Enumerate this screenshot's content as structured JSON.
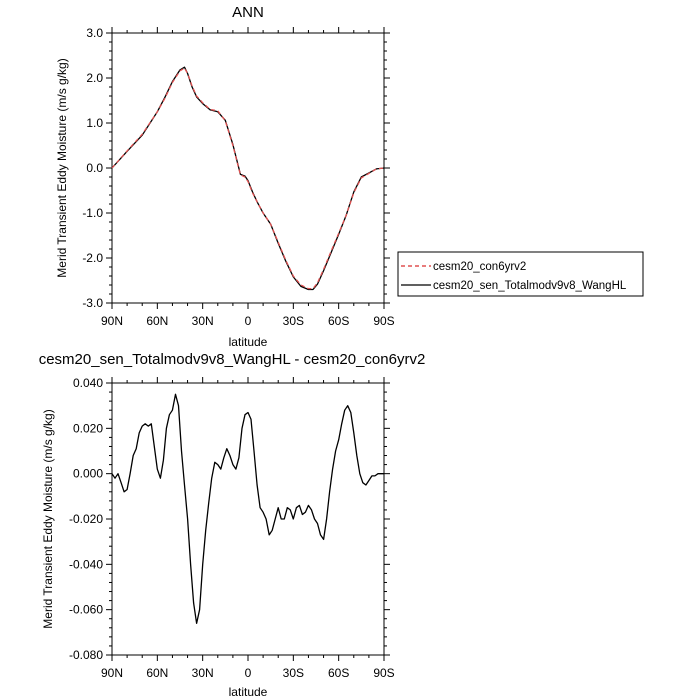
{
  "chart_data": [
    {
      "type": "line",
      "title": "ANN",
      "xlabel": "latitude",
      "ylabel": "Merid Transient Eddy Moisture (m/s g/kg)",
      "xlim": [
        90,
        -90
      ],
      "ylim": [
        -3.0,
        3.0
      ],
      "x_ticks": [
        90,
        60,
        30,
        0,
        -30,
        -60,
        -90
      ],
      "x_tick_labels": [
        "90N",
        "60N",
        "30N",
        "0",
        "30S",
        "60S",
        "90S"
      ],
      "y_ticks": [
        3.0,
        2.0,
        1.0,
        0.0,
        -1.0,
        -2.0,
        -3.0
      ],
      "y_tick_labels": [
        "3.0",
        "2.0",
        "1.0",
        "0.0",
        "-1.0",
        "-2.0",
        "-3.0"
      ],
      "legend": "outside-right",
      "series": [
        {
          "name": "cesm20_con6yrv2",
          "color": "#e05050",
          "dash": true,
          "x": [
            90,
            80,
            70,
            60,
            55,
            50,
            45,
            42,
            40,
            37,
            34,
            30,
            25,
            20,
            15,
            10,
            5,
            2,
            0,
            -3,
            -6,
            -10,
            -15,
            -20,
            -25,
            -30,
            -35,
            -40,
            -43,
            -46,
            -50,
            -55,
            -60,
            -65,
            -70,
            -75,
            -80,
            -85,
            -90
          ],
          "y": [
            0.0,
            0.38,
            0.75,
            1.25,
            1.55,
            1.9,
            2.16,
            2.22,
            2.1,
            1.82,
            1.6,
            1.45,
            1.3,
            1.27,
            1.05,
            0.5,
            -0.15,
            -0.2,
            -0.3,
            -0.55,
            -0.75,
            -1.0,
            -1.25,
            -1.65,
            -2.05,
            -2.4,
            -2.6,
            -2.68,
            -2.68,
            -2.55,
            -2.25,
            -1.85,
            -1.45,
            -1.05,
            -0.55,
            -0.22,
            -0.12,
            -0.02,
            0.0
          ]
        },
        {
          "name": "cesm20_sen_Totalmodv9v8_WangHL",
          "color": "#000000",
          "dash": false,
          "x": [
            90,
            80,
            70,
            60,
            55,
            50,
            45,
            42,
            40,
            37,
            34,
            30,
            25,
            20,
            15,
            10,
            5,
            2,
            0,
            -3,
            -6,
            -10,
            -15,
            -20,
            -25,
            -30,
            -35,
            -40,
            -43,
            -46,
            -50,
            -55,
            -60,
            -65,
            -70,
            -75,
            -80,
            -85,
            -90
          ],
          "y": [
            0.0,
            0.37,
            0.73,
            1.25,
            1.57,
            1.92,
            2.18,
            2.24,
            2.1,
            1.8,
            1.58,
            1.43,
            1.29,
            1.25,
            1.06,
            0.52,
            -0.14,
            -0.18,
            -0.28,
            -0.53,
            -0.75,
            -1.0,
            -1.25,
            -1.67,
            -2.07,
            -2.42,
            -2.63,
            -2.7,
            -2.7,
            -2.58,
            -2.28,
            -1.88,
            -1.47,
            -1.05,
            -0.53,
            -0.2,
            -0.11,
            -0.02,
            0.0
          ]
        }
      ]
    },
    {
      "type": "line",
      "title": "cesm20_sen_Totalmodv9v8_WangHL - cesm20_con6yrv2",
      "xlabel": "latitude",
      "ylabel": "Merid Transient Eddy Moisture (m/s g/kg)",
      "xlim": [
        90,
        -90
      ],
      "ylim": [
        -0.08,
        0.04
      ],
      "x_ticks": [
        90,
        60,
        30,
        0,
        -30,
        -60,
        -90
      ],
      "x_tick_labels": [
        "90N",
        "60N",
        "30N",
        "0",
        "30S",
        "60S",
        "90S"
      ],
      "y_ticks": [
        0.04,
        0.02,
        0.0,
        -0.02,
        -0.04,
        -0.06,
        -0.08
      ],
      "y_tick_labels": [
        "0.040",
        "0.020",
        "0.000",
        "-0.020",
        "-0.040",
        "-0.060",
        "-0.080"
      ],
      "series": [
        {
          "color": "#000000",
          "x": [
            90,
            88,
            86,
            84,
            82,
            80,
            78,
            76,
            74,
            72,
            70,
            68,
            66,
            64,
            62,
            60,
            58,
            56,
            54,
            52,
            50,
            48,
            46,
            44,
            42,
            40,
            38,
            36,
            34,
            32,
            30,
            28,
            26,
            24,
            22,
            20,
            18,
            16,
            14,
            12,
            10,
            8,
            6,
            4,
            2,
            0,
            -2,
            -4,
            -6,
            -8,
            -10,
            -12,
            -14,
            -16,
            -18,
            -20,
            -22,
            -24,
            -26,
            -28,
            -30,
            -32,
            -34,
            -36,
            -38,
            -40,
            -42,
            -44,
            -46,
            -48,
            -50,
            -52,
            -54,
            -56,
            -58,
            -60,
            -62,
            -64,
            -66,
            -68,
            -70,
            -72,
            -74,
            -76,
            -78,
            -80,
            -82,
            -84,
            -86,
            -88,
            -90
          ],
          "y": [
            0.0,
            -0.002,
            0.0,
            -0.004,
            -0.008,
            -0.007,
            0.0,
            0.008,
            0.011,
            0.018,
            0.021,
            0.022,
            0.021,
            0.022,
            0.012,
            0.002,
            -0.002,
            0.006,
            0.02,
            0.026,
            0.028,
            0.035,
            0.03,
            0.01,
            -0.005,
            -0.02,
            -0.04,
            -0.057,
            -0.066,
            -0.06,
            -0.04,
            -0.025,
            -0.013,
            -0.002,
            0.005,
            0.004,
            0.002,
            0.007,
            0.011,
            0.008,
            0.004,
            0.002,
            0.007,
            0.02,
            0.026,
            0.027,
            0.024,
            0.01,
            -0.005,
            -0.015,
            -0.017,
            -0.02,
            -0.027,
            -0.025,
            -0.02,
            -0.015,
            -0.02,
            -0.02,
            -0.015,
            -0.016,
            -0.02,
            -0.015,
            -0.014,
            -0.018,
            -0.017,
            -0.014,
            -0.016,
            -0.02,
            -0.022,
            -0.027,
            -0.029,
            -0.02,
            -0.008,
            0.002,
            0.01,
            0.015,
            0.022,
            0.028,
            0.03,
            0.027,
            0.018,
            0.008,
            0.0,
            -0.004,
            -0.005,
            -0.003,
            -0.001,
            -0.001,
            0.0,
            0.0,
            0.0
          ]
        }
      ]
    }
  ]
}
